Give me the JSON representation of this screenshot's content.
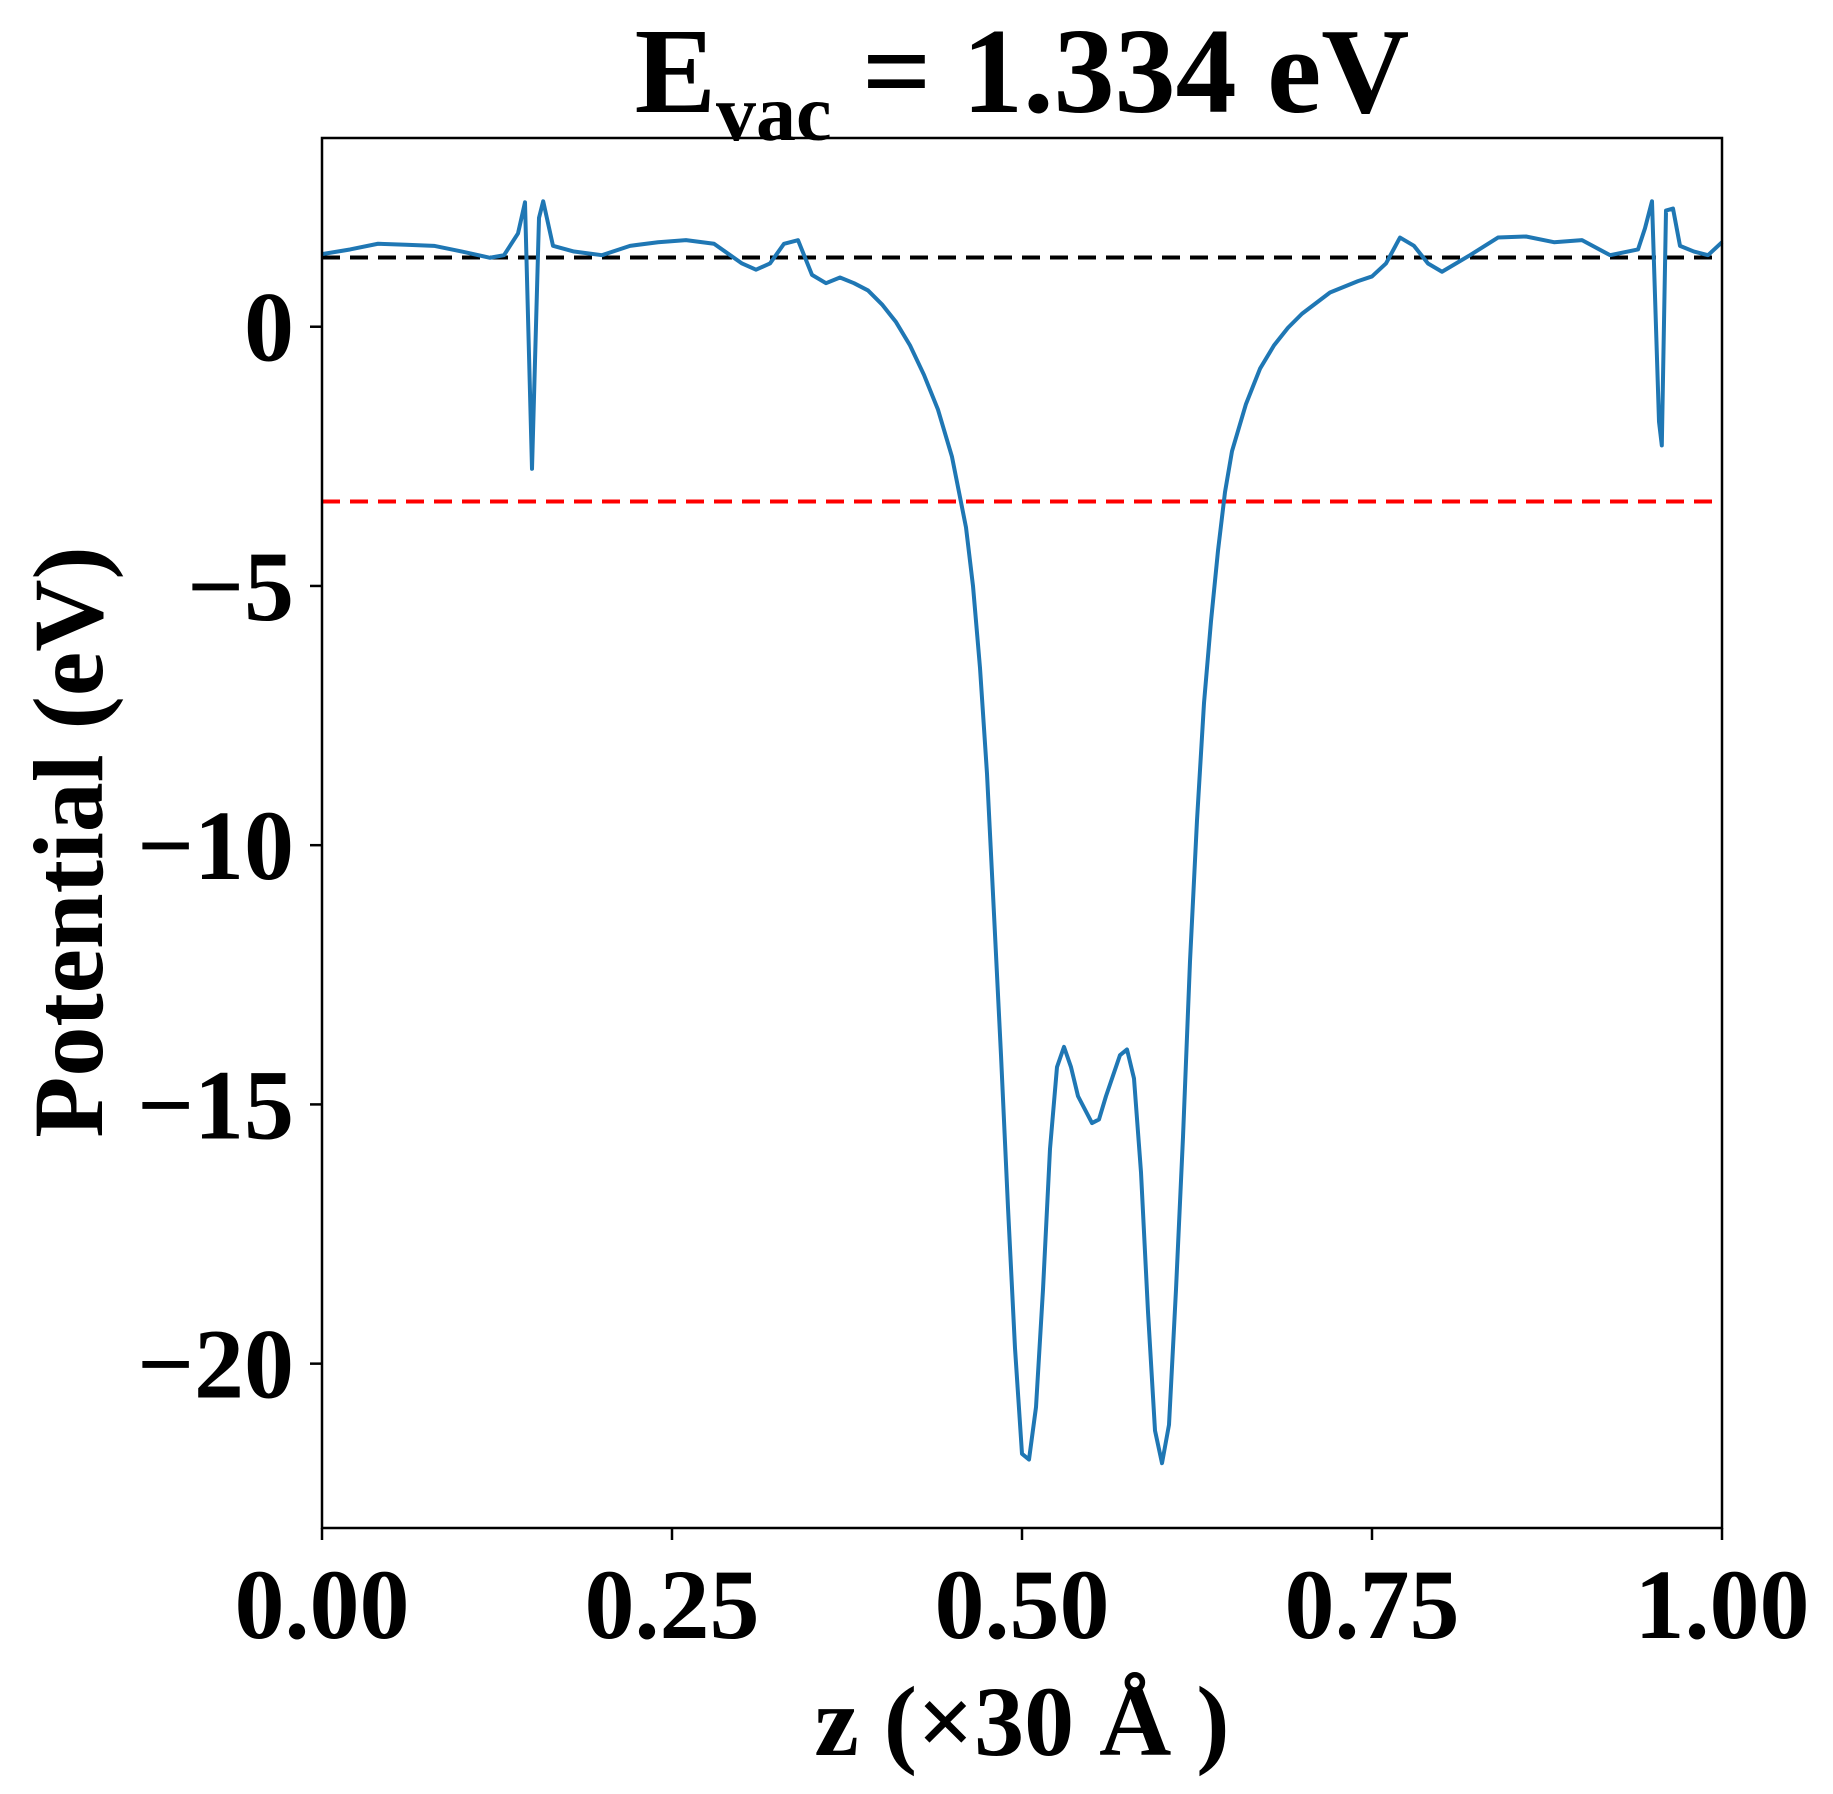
{
  "chart_data": {
    "type": "line",
    "title": {
      "main": "E",
      "subscript": "vac",
      "rest": " = 1.334 eV"
    },
    "x_label": "z (×30 Å )",
    "y_label": "Potential (eV)",
    "xlim": [
      0,
      1
    ],
    "ylim": [
      -23.17,
      3.64
    ],
    "xticks": [
      {
        "value": 0,
        "label": "0.00"
      },
      {
        "value": 0.25,
        "label": "0.25"
      },
      {
        "value": 0.5,
        "label": "0.50"
      },
      {
        "value": 0.75,
        "label": "0.75"
      },
      {
        "value": 1,
        "label": "1.00"
      }
    ],
    "yticks": [
      0,
      {
        "value": -5,
        "label": "−5"
      },
      {
        "value": -10,
        "label": "−10"
      },
      {
        "value": -15,
        "label": "−15"
      },
      {
        "value": -20,
        "label": "−20"
      }
    ],
    "hlines": [
      {
        "value": 1.334,
        "color": "#000000"
      },
      {
        "value": -3.37,
        "color": "#ff0000"
      }
    ],
    "series": [
      {
        "color": "#1f77b4",
        "x": [
          0,
          0.02,
          0.04,
          0.06,
          0.08,
          0.1,
          0.12,
          0.13,
          0.14,
          0.145,
          0.15,
          0.155,
          0.158,
          0.165,
          0.18,
          0.2,
          0.22,
          0.24,
          0.26,
          0.28,
          0.3,
          0.31,
          0.32,
          0.33,
          0.34,
          0.35,
          0.36,
          0.37,
          0.38,
          0.39,
          0.4,
          0.41,
          0.42,
          0.43,
          0.44,
          0.45,
          0.455,
          0.46,
          0.465,
          0.47,
          0.475,
          0.48,
          0.485,
          0.49,
          0.495,
          0.5,
          0.505,
          0.51,
          0.515,
          0.52,
          0.525,
          0.53,
          0.535,
          0.54,
          0.55,
          0.555,
          0.56,
          0.57,
          0.575,
          0.58,
          0.585,
          0.59,
          0.595,
          0.6,
          0.605,
          0.61,
          0.615,
          0.62,
          0.625,
          0.63,
          0.635,
          0.64,
          0.645,
          0.65,
          0.66,
          0.67,
          0.68,
          0.69,
          0.7,
          0.72,
          0.74,
          0.75,
          0.76,
          0.77,
          0.78,
          0.79,
          0.8,
          0.82,
          0.84,
          0.86,
          0.88,
          0.9,
          0.92,
          0.94,
          0.945,
          0.95,
          0.955,
          0.957,
          0.96,
          0.965,
          0.97,
          0.98,
          0.99,
          1.0
        ],
        "values": [
          1.4,
          1.49,
          1.6,
          1.58,
          1.56,
          1.45,
          1.33,
          1.38,
          1.8,
          2.4,
          -2.74,
          2.1,
          2.42,
          1.56,
          1.45,
          1.38,
          1.56,
          1.63,
          1.67,
          1.6,
          1.22,
          1.1,
          1.22,
          1.6,
          1.67,
          1.0,
          0.84,
          0.95,
          0.84,
          0.7,
          0.43,
          0.09,
          -0.36,
          -0.93,
          -1.6,
          -2.51,
          -3.19,
          -3.87,
          -5.0,
          -6.58,
          -8.62,
          -11.33,
          -14.05,
          -16.99,
          -19.7,
          -21.74,
          -21.85,
          -20.84,
          -18.57,
          -15.86,
          -14.28,
          -13.89,
          -14.28,
          -14.84,
          -15.36,
          -15.29,
          -14.84,
          -14.05,
          -13.94,
          -14.5,
          -16.31,
          -19.0,
          -21.29,
          -21.92,
          -21.18,
          -18.57,
          -15.63,
          -12.24,
          -9.52,
          -7.26,
          -5.68,
          -4.32,
          -3.19,
          -2.4,
          -1.49,
          -0.81,
          -0.36,
          -0.02,
          0.25,
          0.66,
          0.88,
          0.97,
          1.22,
          1.72,
          1.56,
          1.22,
          1.06,
          1.38,
          1.72,
          1.74,
          1.63,
          1.67,
          1.38,
          1.49,
          1.9,
          2.42,
          -1.83,
          -2.29,
          2.24,
          2.28,
          1.56,
          1.45,
          1.38,
          1.63
        ]
      }
    ]
  }
}
